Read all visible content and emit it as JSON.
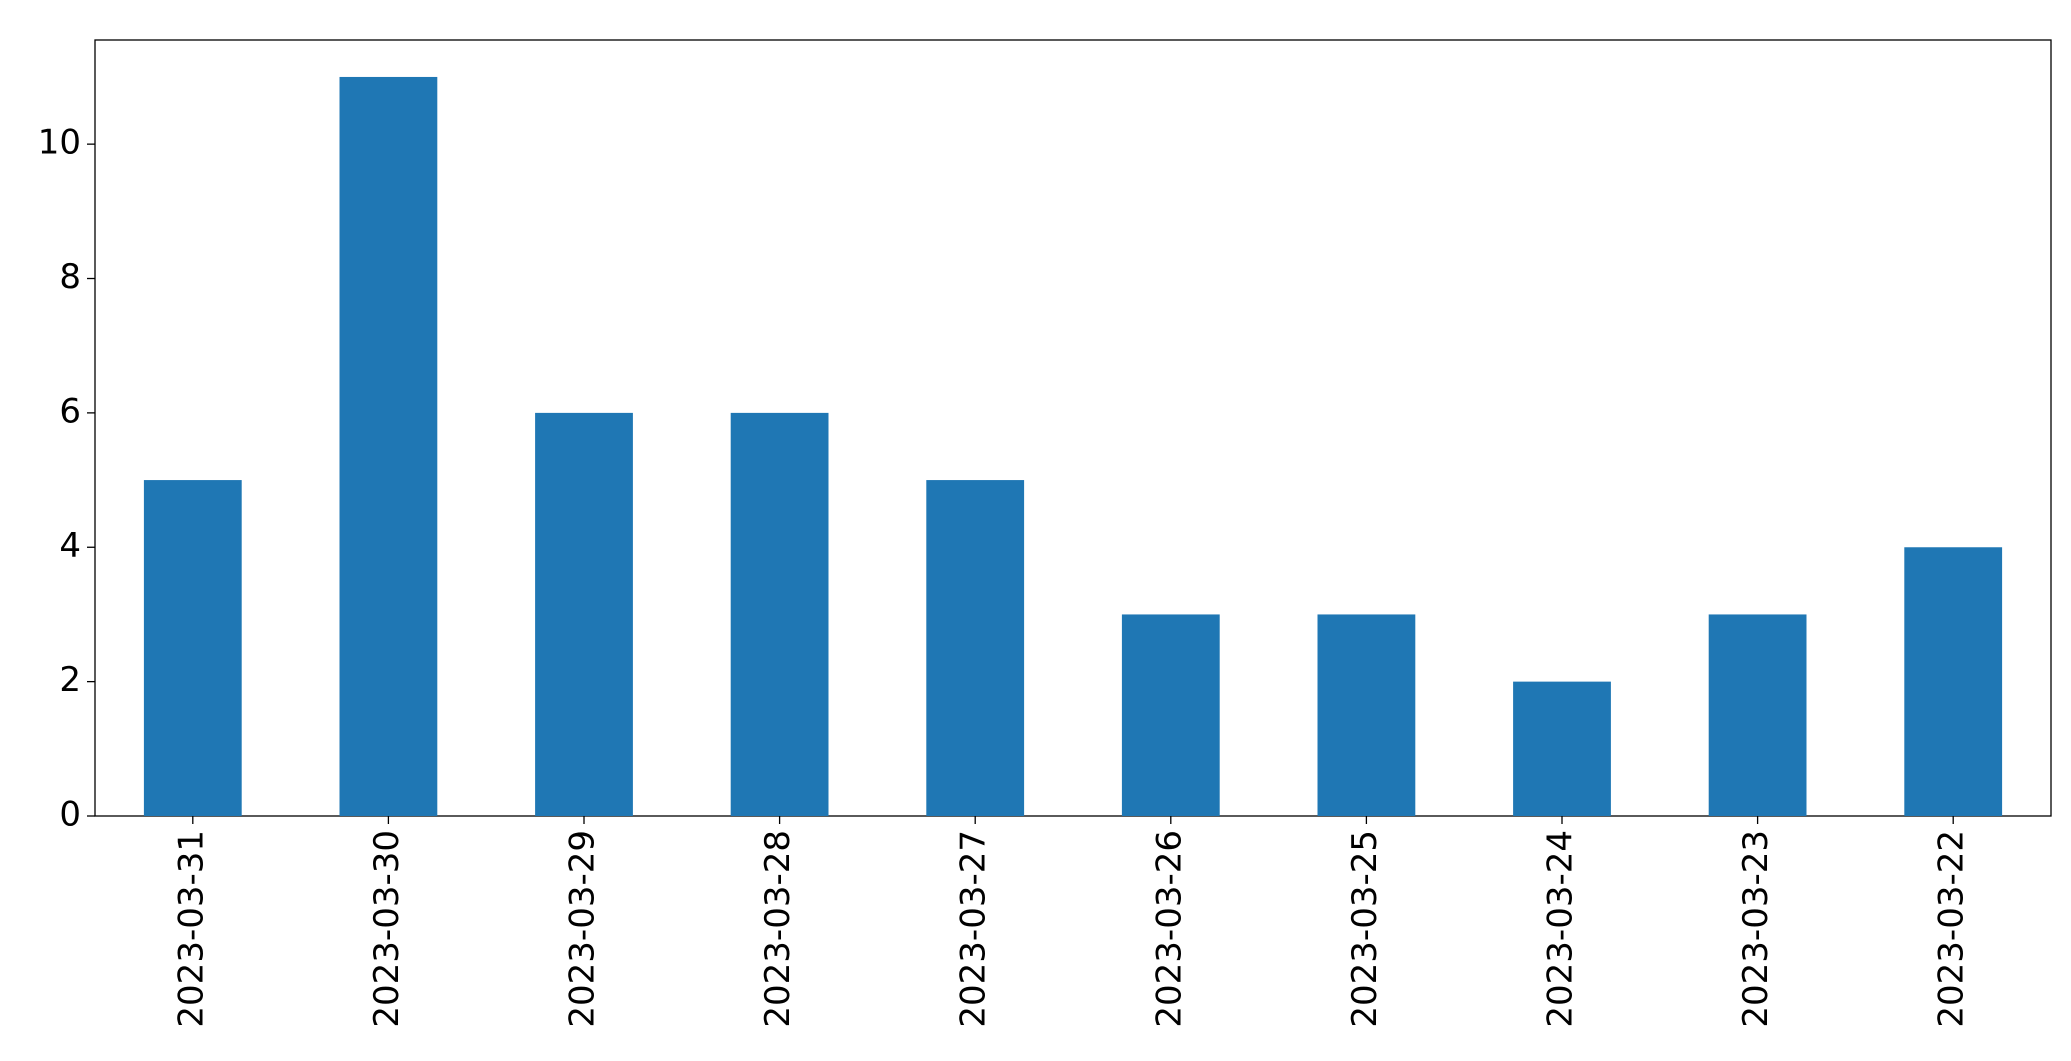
{
  "chart_data": {
    "type": "bar",
    "categories": [
      "2023-03-31",
      "2023-03-30",
      "2023-03-29",
      "2023-03-28",
      "2023-03-27",
      "2023-03-26",
      "2023-03-25",
      "2023-03-24",
      "2023-03-23",
      "2023-03-22"
    ],
    "values": [
      5,
      11,
      6,
      6,
      5,
      3,
      3,
      2,
      3,
      4
    ],
    "color": "#1f77b4",
    "ylim": [
      0,
      11.55
    ],
    "yticks": [
      0,
      2,
      4,
      6,
      8,
      10
    ],
    "grid": false
  }
}
